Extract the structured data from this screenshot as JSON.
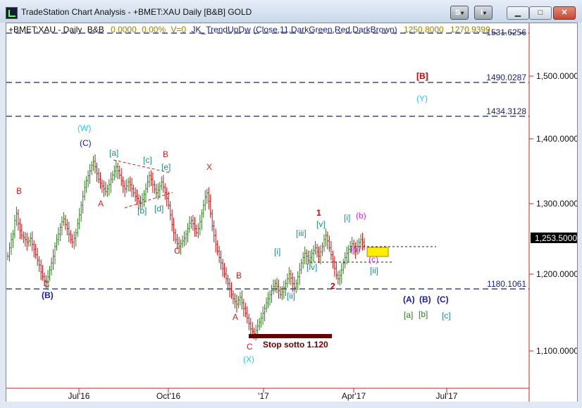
{
  "window": {
    "title": "TradeStation Chart Analysis - +BMET:XAU Daily [B&B] GOLD",
    "btn_s": "S",
    "btn_i": "I",
    "dropdown_glyph": "▾",
    "minimize_glyph": "▁",
    "maximize_glyph": "□",
    "close_glyph": "✕"
  },
  "header": {
    "symbol": "+BMET:XAU - Daily",
    "bb": "B&B",
    "v1": "0.0000",
    "v2": "0.00%",
    "v3": "V=0",
    "indicator": "JK_TrendUpDw (Close,11,DarkGreen,Red,DarkBrown)",
    "v4": "1250.8000",
    "v5": "1270.9399"
  },
  "price_axis": {
    "ticks": [
      "1,500.0000",
      "1,400.0000",
      "1,300.0000",
      "1,200.0000",
      "1,100.0000"
    ],
    "last_price": "1,253.5000"
  },
  "date_axis": {
    "ticks": [
      "Jul'16",
      "Oct'16",
      "'17",
      "Apr'17",
      "Jul'17"
    ]
  },
  "levels": [
    "1531.6256",
    "1490.0287",
    "1434.3128",
    "1180.1061"
  ],
  "annotations": {
    "B_bracket": "[B]",
    "Y": "(Y)",
    "W": "(W)",
    "C_top": "(C)",
    "a_sq": "[a]",
    "c_sq": "[c]",
    "e_sq": "[e]",
    "b_sq": "[b]",
    "d_sq": "[d]",
    "B_red1": "B",
    "B_red2": "B",
    "A_red1": "A",
    "X_red": "X",
    "C_red1": "C",
    "C_red2": "C",
    "B_blue_paren": "(B)",
    "B_red3": "B",
    "A_red2": "A",
    "C_red3": "C",
    "X_paren": "(X)",
    "stop": "Stop sotto 1.120",
    "one": "1",
    "two": "2",
    "i_sq": "[i]",
    "ii_sq": "[ii]",
    "iii_sq": "[iii]",
    "iv_sq": "[iv]",
    "v_sq": "[v]",
    "i_sq2": "[i]",
    "b_paren": "(b)",
    "a_paren": "(a)",
    "c_paren": "(c)",
    "ii_sq2": "[ii]",
    "A_paren": "(A)",
    "B_paren2": "(B)",
    "C_paren": "(C)",
    "a_sq2": "[a]",
    "b_sq2": "[b]",
    "c_sq2": "[c]"
  },
  "colors": {
    "up_bar": "#2e7d1e",
    "down_bar": "#c01010",
    "level_line": "#1a237e",
    "axis_red": "#cc2222",
    "teal": "#1f8a8a",
    "cyan": "#22ccee",
    "magenta": "#cc33cc",
    "navy": "#1a1aaa",
    "stop_bar": "#6b0000",
    "target_box": "#ffee00"
  },
  "chart_data": {
    "type": "ohlc",
    "series_close": [
      1238,
      1250,
      1262,
      1270,
      1290,
      1300,
      1285,
      1275,
      1268,
      1265,
      1262,
      1258,
      1260,
      1264,
      1255,
      1248,
      1240,
      1232,
      1225,
      1215,
      1208,
      1202,
      1200,
      1208,
      1218,
      1228,
      1238,
      1252,
      1262,
      1270,
      1280,
      1288,
      1292,
      1284,
      1278,
      1270,
      1262,
      1258,
      1264,
      1272,
      1285,
      1298,
      1312,
      1325,
      1338,
      1348,
      1355,
      1362,
      1370,
      1376,
      1368,
      1358,
      1350,
      1344,
      1340,
      1336,
      1332,
      1336,
      1342,
      1350,
      1356,
      1362,
      1368,
      1362,
      1356,
      1348,
      1340,
      1336,
      1340,
      1346,
      1342,
      1336,
      1330,
      1325,
      1322,
      1318,
      1315,
      1320,
      1328,
      1336,
      1346,
      1355,
      1350,
      1342,
      1335,
      1330,
      1334,
      1340,
      1346,
      1338,
      1330,
      1322,
      1312,
      1298,
      1284,
      1272,
      1262,
      1256,
      1252,
      1256,
      1260,
      1264,
      1270,
      1278,
      1286,
      1290,
      1285,
      1278,
      1272,
      1278,
      1288,
      1300,
      1312,
      1324,
      1330,
      1318,
      1300,
      1282,
      1268,
      1255,
      1245,
      1236,
      1228,
      1220,
      1212,
      1205,
      1198,
      1190,
      1182,
      1176,
      1172,
      1168,
      1174,
      1178,
      1170,
      1162,
      1155,
      1148,
      1140,
      1132,
      1128,
      1125,
      1130,
      1136,
      1142,
      1148,
      1155,
      1162,
      1170,
      1176,
      1182,
      1188,
      1194,
      1198,
      1194,
      1188,
      1182,
      1186,
      1192,
      1198,
      1205,
      1212,
      1206,
      1198,
      1192,
      1198,
      1208,
      1218,
      1228,
      1236,
      1242,
      1238,
      1232,
      1236,
      1242,
      1246,
      1250,
      1244,
      1238,
      1244,
      1252,
      1262,
      1268,
      1260,
      1250,
      1240,
      1230,
      1220,
      1210,
      1205,
      1210,
      1218,
      1228,
      1236,
      1242,
      1248,
      1252,
      1256,
      1250,
      1246,
      1252,
      1258,
      1262,
      1258,
      1253
    ]
  }
}
